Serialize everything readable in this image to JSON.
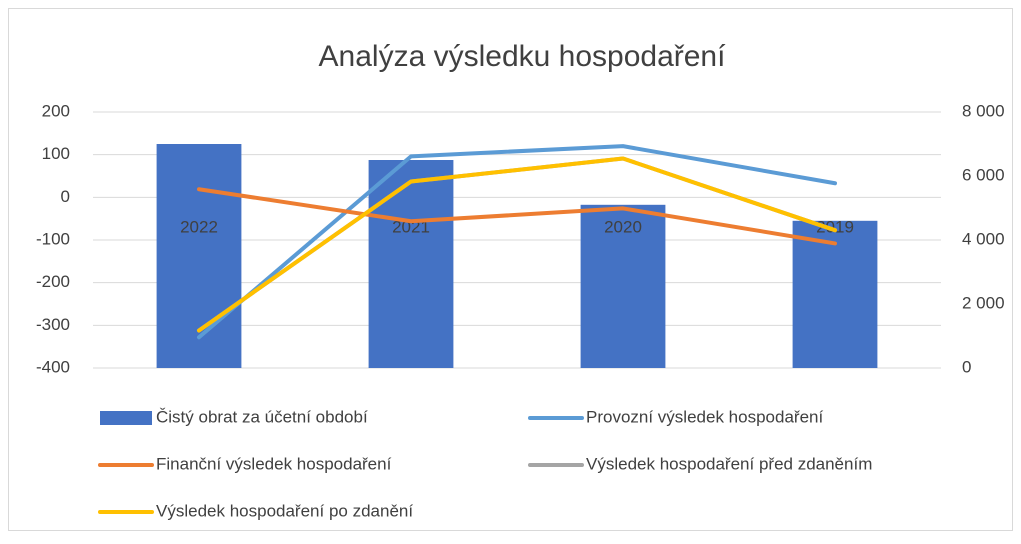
{
  "chart_data": {
    "type": "combo",
    "title": "Analýza výsledku hospodaření",
    "categories": [
      "2022",
      "2021",
      "2020",
      "2019"
    ],
    "series": [
      {
        "name": "Čistý obrat za účetní období",
        "type": "bar",
        "axis": "y2",
        "color": "#4472c4",
        "values": [
          7000,
          6500,
          5100,
          4600
        ]
      },
      {
        "name": "Provozní výsledek hospodaření",
        "type": "line",
        "color": "#5b9bd5",
        "values": [
          -328,
          96,
          120,
          33
        ]
      },
      {
        "name": "Finanční výsledek hospodaření",
        "type": "line",
        "color": "#ed7d31",
        "values": [
          19,
          -56,
          -26,
          -108
        ]
      },
      {
        "name": "Výsledek hospodaření před zdaněním",
        "type": "line",
        "color": "#a5a5a5",
        "values": [
          -312,
          37,
          91,
          -77
        ]
      },
      {
        "name": "Výsledek hospodaření po zdanění",
        "type": "line",
        "color": "#ffc000",
        "values": [
          -312,
          37,
          91,
          -77
        ]
      }
    ],
    "ylim": [
      -400,
      200
    ],
    "yticks": [
      -400,
      -300,
      -200,
      -100,
      0,
      100,
      200
    ],
    "y2lim": [
      0,
      8000
    ],
    "y2ticks": [
      0,
      {
        "value": 2000,
        "label": "2 000"
      },
      {
        "value": 4000,
        "label": "4 000"
      },
      {
        "value": 6000,
        "label": "6 000"
      },
      {
        "value": 8000,
        "label": "8 000"
      }
    ],
    "grid": true,
    "legend": "bottom"
  }
}
